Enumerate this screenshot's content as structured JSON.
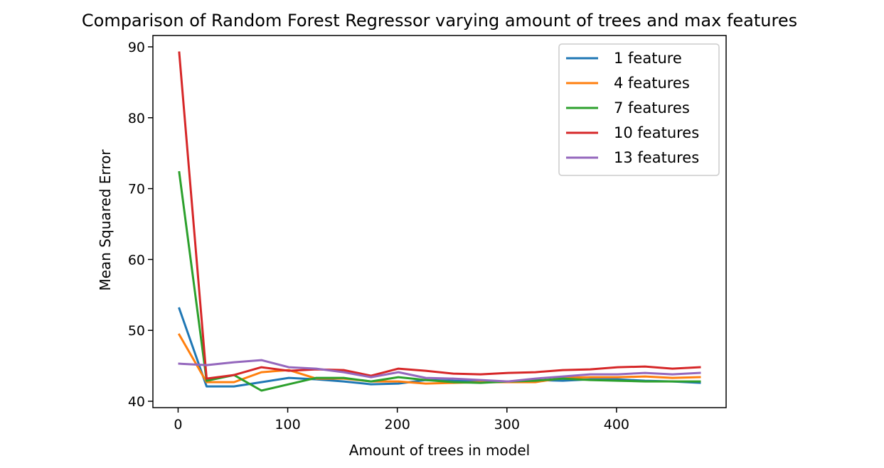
{
  "chart_data": {
    "type": "line",
    "title": "Comparison of Random Forest Regressor varying amount of trees and max features",
    "xlabel": "Amount of trees in model",
    "ylabel": "Mean Squared Error",
    "xlim": [
      -23,
      500
    ],
    "ylim": [
      39.1,
      91.6
    ],
    "xticks": [
      0,
      100,
      200,
      300,
      400
    ],
    "yticks": [
      40,
      50,
      60,
      70,
      80,
      90
    ],
    "grid": false,
    "legend": "top-right",
    "x": [
      1,
      26,
      51,
      76,
      101,
      126,
      151,
      176,
      201,
      226,
      251,
      276,
      301,
      326,
      351,
      376,
      401,
      426,
      451,
      476
    ],
    "series": [
      {
        "name": "1 feature",
        "color": "#1f77b4",
        "values": [
          53.1,
          42.1,
          42.1,
          42.7,
          43.3,
          43.1,
          42.8,
          42.4,
          42.5,
          43.0,
          42.9,
          42.8,
          42.8,
          43.0,
          42.9,
          43.1,
          43.1,
          42.9,
          42.8,
          42.6
        ]
      },
      {
        "name": "4 features",
        "color": "#ff7f0e",
        "values": [
          49.4,
          42.7,
          42.7,
          44.1,
          44.4,
          43.2,
          43.2,
          42.8,
          42.8,
          42.5,
          42.6,
          42.7,
          42.7,
          42.7,
          43.3,
          43.4,
          43.4,
          43.5,
          43.3,
          43.4
        ]
      },
      {
        "name": "7 features",
        "color": "#2ca02c",
        "values": [
          72.3,
          42.9,
          43.7,
          41.5,
          42.4,
          43.3,
          43.3,
          42.8,
          43.4,
          43.0,
          42.7,
          42.6,
          42.8,
          42.9,
          43.2,
          43.0,
          42.9,
          42.8,
          42.8,
          42.8
        ]
      },
      {
        "name": "10 features",
        "color": "#d62728",
        "values": [
          89.2,
          43.2,
          43.7,
          44.8,
          44.3,
          44.5,
          44.4,
          43.6,
          44.6,
          44.3,
          43.9,
          43.8,
          44.0,
          44.1,
          44.4,
          44.5,
          44.8,
          44.9,
          44.6,
          44.8
        ]
      },
      {
        "name": "13 features",
        "color": "#9467bd",
        "values": [
          45.3,
          45.1,
          45.5,
          45.8,
          44.8,
          44.6,
          44.1,
          43.4,
          44.1,
          43.3,
          43.2,
          43.0,
          42.8,
          43.2,
          43.5,
          43.8,
          43.8,
          44.0,
          43.8,
          44.0
        ]
      }
    ]
  }
}
